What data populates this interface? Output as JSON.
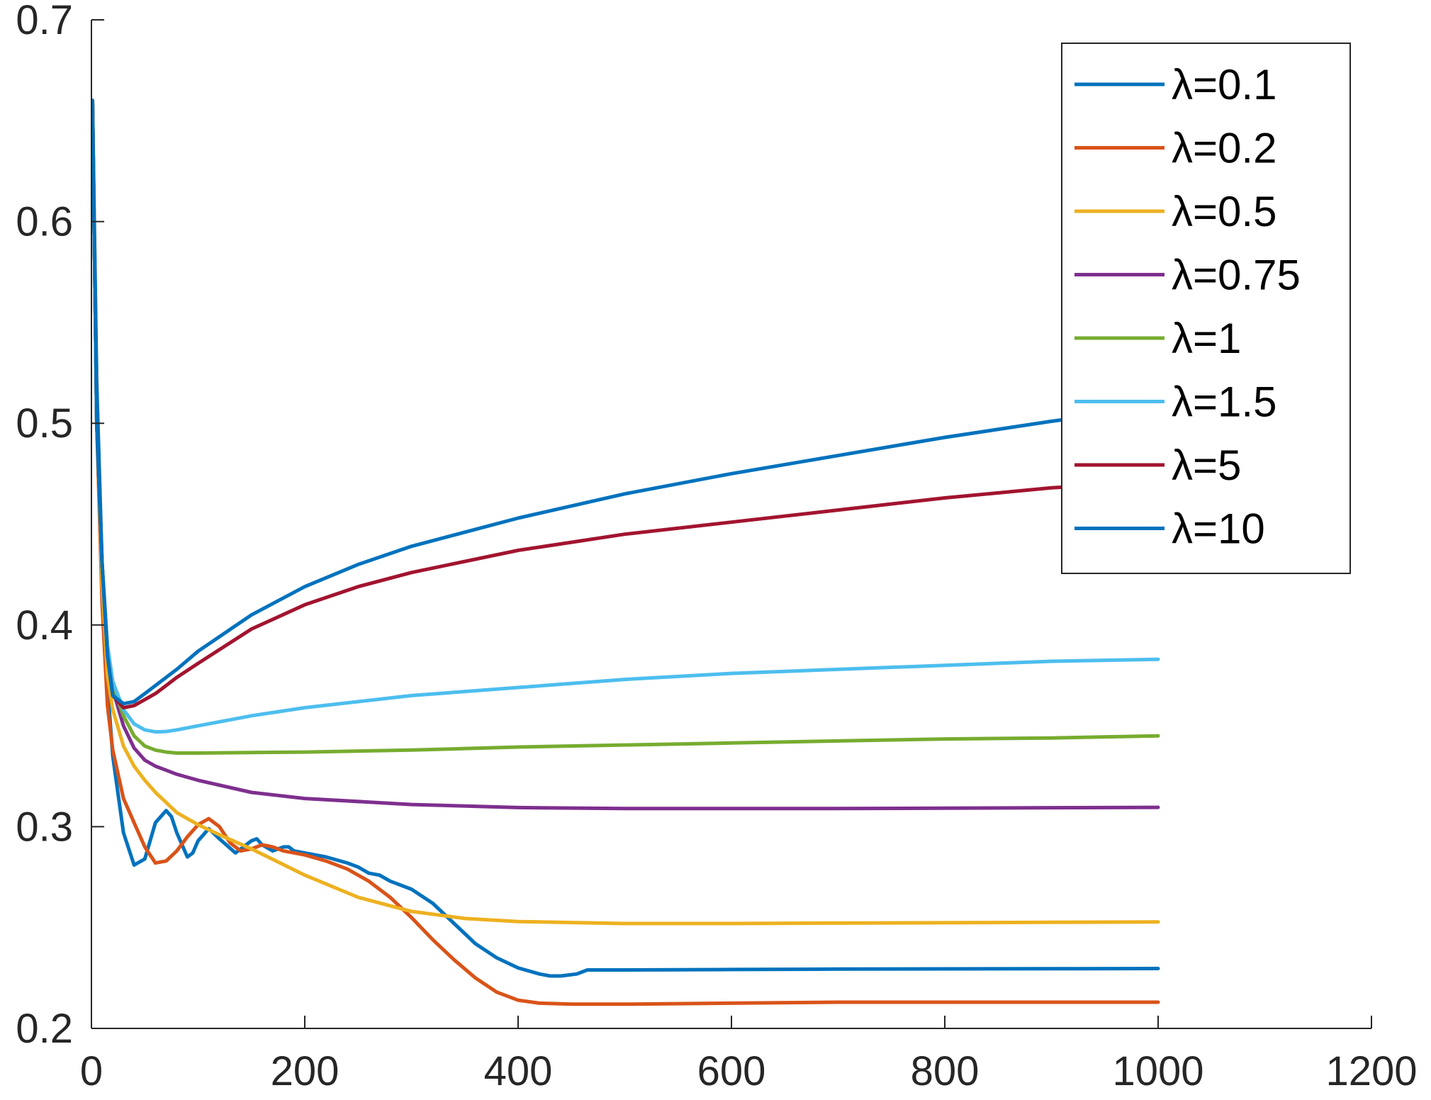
{
  "chart_data": {
    "type": "line",
    "title": "",
    "xlabel": "",
    "ylabel": "",
    "xlim": [
      0,
      1200
    ],
    "ylim": [
      0.2,
      0.7
    ],
    "xticks": [
      0,
      200,
      400,
      600,
      800,
      1000,
      1200
    ],
    "yticks": [
      0.2,
      0.3,
      0.4,
      0.5,
      0.6,
      0.7
    ],
    "xtick_labels": [
      "0",
      "200",
      "400",
      "600",
      "800",
      "1000",
      "1200"
    ],
    "ytick_labels": [
      "0.2",
      "0.3",
      "0.4",
      "0.5",
      "0.6",
      "0.7"
    ],
    "grid": false,
    "legend_position": "top-right",
    "series": [
      {
        "name": "λ=0.1",
        "color": "#0072BD",
        "x": [
          1,
          5,
          10,
          15,
          20,
          30,
          40,
          50,
          60,
          70,
          75,
          80,
          90,
          95,
          100,
          110,
          120,
          135,
          140,
          150,
          155,
          160,
          170,
          180,
          185,
          190,
          200,
          220,
          240,
          250,
          260,
          270,
          280,
          300,
          320,
          340,
          360,
          380,
          400,
          420,
          430,
          440,
          455,
          465,
          470,
          500,
          600,
          700,
          800,
          900,
          1000
        ],
        "y": [
          0.66,
          0.52,
          0.43,
          0.37,
          0.335,
          0.297,
          0.281,
          0.284,
          0.302,
          0.308,
          0.305,
          0.297,
          0.285,
          0.287,
          0.293,
          0.299,
          0.294,
          0.287,
          0.289,
          0.293,
          0.294,
          0.291,
          0.288,
          0.29,
          0.29,
          0.288,
          0.287,
          0.285,
          0.282,
          0.28,
          0.277,
          0.276,
          0.273,
          0.269,
          0.262,
          0.252,
          0.242,
          0.235,
          0.23,
          0.227,
          0.226,
          0.226,
          0.227,
          0.229,
          0.229,
          0.229,
          0.2292,
          0.2294,
          0.2295,
          0.2296,
          0.2297
        ]
      },
      {
        "name": "λ=0.2",
        "color": "#D95319",
        "x": [
          1,
          5,
          10,
          15,
          20,
          30,
          40,
          50,
          60,
          70,
          80,
          90,
          100,
          110,
          120,
          130,
          140,
          150,
          160,
          170,
          180,
          200,
          220,
          240,
          260,
          280,
          300,
          320,
          340,
          360,
          380,
          400,
          420,
          450,
          500,
          600,
          700,
          800,
          900,
          1000
        ],
        "y": [
          0.66,
          0.5,
          0.41,
          0.36,
          0.338,
          0.314,
          0.302,
          0.29,
          0.282,
          0.283,
          0.288,
          0.295,
          0.301,
          0.304,
          0.3,
          0.292,
          0.288,
          0.289,
          0.291,
          0.29,
          0.288,
          0.286,
          0.283,
          0.279,
          0.273,
          0.265,
          0.255,
          0.244,
          0.234,
          0.225,
          0.218,
          0.214,
          0.2125,
          0.212,
          0.212,
          0.2125,
          0.213,
          0.213,
          0.213,
          0.213
        ]
      },
      {
        "name": "λ=0.5",
        "color": "#EDB120",
        "x": [
          1,
          5,
          10,
          15,
          20,
          30,
          40,
          50,
          60,
          70,
          80,
          90,
          100,
          120,
          150,
          200,
          250,
          300,
          350,
          400,
          450,
          500,
          550,
          600,
          700,
          800,
          900,
          1000
        ],
        "y": [
          0.66,
          0.5,
          0.42,
          0.375,
          0.358,
          0.34,
          0.33,
          0.323,
          0.317,
          0.312,
          0.307,
          0.304,
          0.301,
          0.296,
          0.289,
          0.276,
          0.265,
          0.258,
          0.2545,
          0.253,
          0.2525,
          0.252,
          0.252,
          0.252,
          0.2522,
          0.2524,
          0.2526,
          0.2528
        ]
      },
      {
        "name": "λ=0.75",
        "color": "#7E2F8E",
        "x": [
          1,
          5,
          10,
          15,
          20,
          30,
          40,
          50,
          60,
          70,
          80,
          100,
          150,
          200,
          300,
          400,
          500,
          600,
          700,
          800,
          900,
          1000
        ],
        "y": [
          0.66,
          0.5,
          0.43,
          0.388,
          0.368,
          0.35,
          0.339,
          0.333,
          0.33,
          0.328,
          0.326,
          0.323,
          0.317,
          0.314,
          0.311,
          0.3095,
          0.309,
          0.309,
          0.309,
          0.3092,
          0.3094,
          0.3096
        ]
      },
      {
        "name": "λ=1",
        "color": "#77AC30",
        "x": [
          1,
          5,
          10,
          15,
          20,
          30,
          40,
          50,
          60,
          70,
          80,
          100,
          150,
          200,
          300,
          400,
          500,
          600,
          700,
          800,
          900,
          1000
        ],
        "y": [
          0.66,
          0.5,
          0.43,
          0.39,
          0.37,
          0.355,
          0.345,
          0.34,
          0.338,
          0.337,
          0.3365,
          0.3365,
          0.3368,
          0.337,
          0.338,
          0.3395,
          0.3405,
          0.3415,
          0.3425,
          0.3435,
          0.344,
          0.345
        ]
      },
      {
        "name": "λ=1.5",
        "color": "#4DBEEE",
        "x": [
          1,
          5,
          10,
          15,
          20,
          30,
          40,
          50,
          60,
          70,
          80,
          100,
          150,
          200,
          300,
          400,
          500,
          600,
          700,
          800,
          900,
          1000
        ],
        "y": [
          0.66,
          0.5,
          0.43,
          0.39,
          0.372,
          0.358,
          0.351,
          0.348,
          0.347,
          0.3472,
          0.348,
          0.35,
          0.355,
          0.359,
          0.365,
          0.369,
          0.373,
          0.376,
          0.378,
          0.38,
          0.382,
          0.383
        ]
      },
      {
        "name": "λ=5",
        "color": "#A2142F",
        "x": [
          1,
          5,
          10,
          15,
          20,
          30,
          40,
          50,
          60,
          70,
          80,
          100,
          150,
          200,
          250,
          300,
          400,
          500,
          600,
          700,
          800,
          900,
          1000
        ],
        "y": [
          0.66,
          0.5,
          0.43,
          0.385,
          0.365,
          0.359,
          0.36,
          0.363,
          0.366,
          0.37,
          0.374,
          0.381,
          0.398,
          0.41,
          0.419,
          0.426,
          0.437,
          0.445,
          0.451,
          0.457,
          0.463,
          0.468,
          0.471
        ]
      },
      {
        "name": "λ=10",
        "color": "#0072BD",
        "x": [
          1,
          5,
          10,
          15,
          20,
          30,
          40,
          50,
          60,
          70,
          80,
          100,
          150,
          200,
          250,
          300,
          400,
          500,
          600,
          700,
          800,
          900,
          1000
        ],
        "y": [
          0.66,
          0.5,
          0.43,
          0.385,
          0.365,
          0.361,
          0.362,
          0.366,
          0.37,
          0.374,
          0.378,
          0.387,
          0.405,
          0.419,
          0.43,
          0.439,
          0.453,
          0.465,
          0.475,
          0.484,
          0.493,
          0.501,
          0.508
        ]
      }
    ]
  }
}
